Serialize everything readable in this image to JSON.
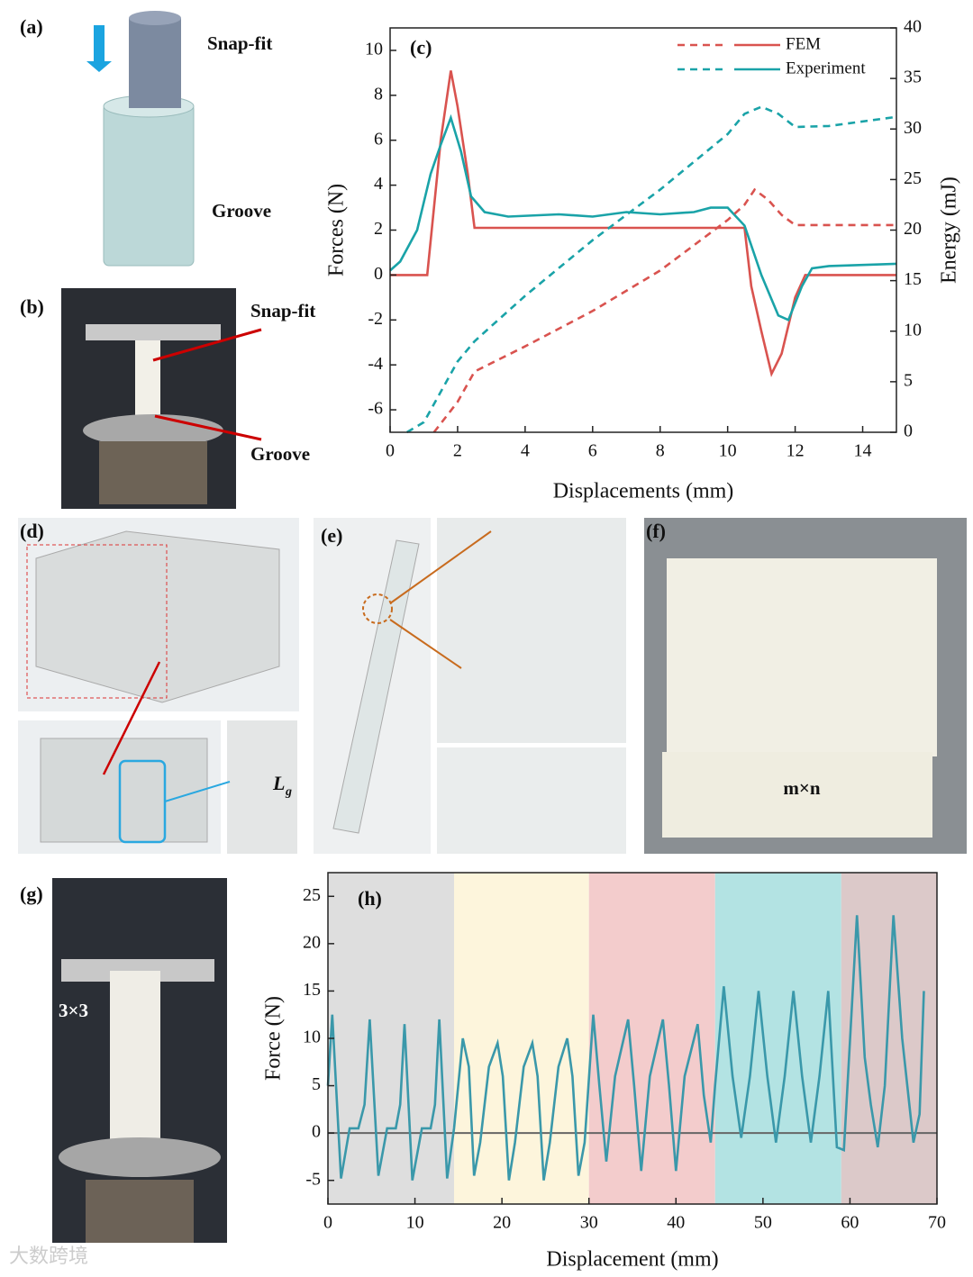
{
  "panels": {
    "a": {
      "label": "(a)",
      "top_text": "Snap-fit",
      "bottom_text": "Groove"
    },
    "b": {
      "label": "(b)",
      "top_text": "Snap-fit",
      "bottom_text": "Groove"
    },
    "d": {
      "label": "(d)",
      "dim_main": "L",
      "dim_sub": "g"
    },
    "e": {
      "label": "(e)"
    },
    "f": {
      "label": "(f)",
      "caption": "m×n"
    },
    "g": {
      "label": "(g)",
      "caption": "3×3"
    },
    "watermark": "大数跨境"
  },
  "chart_data": [
    {
      "type": "line",
      "title": "(c)",
      "x_label": "Displacements (mm)",
      "y_label": "Forces (N)",
      "y2_label": "Energy (mJ)",
      "xlim": [
        0,
        15
      ],
      "xticks": [
        0,
        2,
        4,
        6,
        8,
        10,
        12,
        14
      ],
      "ylim": [
        -7,
        11
      ],
      "yticks": [
        -6,
        -4,
        -2,
        0,
        2,
        4,
        6,
        8,
        10
      ],
      "y2lim": [
        0,
        40
      ],
      "y2ticks": [
        0,
        5,
        10,
        15,
        20,
        25,
        30,
        35,
        40
      ],
      "series": [
        {
          "name": "FEM",
          "color": "#d9534f",
          "dash": false,
          "x": [
            0,
            1.1,
            1.5,
            1.8,
            2.0,
            2.3,
            2.5,
            10.5,
            10.7,
            11.0,
            11.3,
            11.6,
            12.0,
            12.3,
            15
          ],
          "values": [
            0,
            0,
            6,
            9.1,
            7.5,
            4.5,
            2.1,
            2.1,
            -0.5,
            -2.5,
            -4.4,
            -3.5,
            -1,
            0,
            0
          ]
        },
        {
          "name": "Experiment",
          "color": "#1aa3a8",
          "dash": false,
          "x": [
            0,
            0.3,
            0.8,
            1.2,
            1.5,
            1.8,
            2.1,
            2.4,
            2.8,
            3.5,
            5,
            6,
            7,
            8,
            9,
            9.5,
            10,
            10.5,
            11,
            11.5,
            11.8,
            12.2,
            12.5,
            13,
            15
          ],
          "values": [
            0.2,
            0.6,
            2,
            4.5,
            5.8,
            7,
            5.5,
            3.5,
            2.8,
            2.6,
            2.7,
            2.6,
            2.8,
            2.7,
            2.8,
            3,
            3,
            2.2,
            0,
            -1.8,
            -2,
            -0.5,
            0.3,
            0.4,
            0.5
          ]
        },
        {
          "color": "#d9534f",
          "dash": true,
          "axis": "y2",
          "x": [
            1.3,
            2,
            2.5,
            4,
            6,
            8,
            10,
            10.5,
            10.8,
            11.2,
            11.6,
            12,
            13,
            15
          ],
          "values": [
            0,
            3,
            6,
            8.5,
            12,
            16,
            21,
            22.5,
            24,
            23,
            21.5,
            20.5,
            20.5,
            20.5
          ]
        },
        {
          "color": "#1aa3a8",
          "dash": true,
          "axis": "y2",
          "x": [
            0.5,
            1,
            1.5,
            2,
            2.5,
            3,
            4,
            6,
            8,
            10,
            10.5,
            11,
            11.5,
            12,
            13,
            15
          ],
          "values": [
            0,
            1,
            4,
            7,
            9,
            10.5,
            13.5,
            19,
            24,
            29.5,
            31.5,
            32.2,
            31.5,
            30.2,
            30.3,
            31.2
          ]
        }
      ]
    },
    {
      "type": "line",
      "title": "(h)",
      "x_label": "Displacement (mm)",
      "y_label": "Force (N)",
      "xlim": [
        0,
        70
      ],
      "xticks": [
        0,
        10,
        20,
        30,
        40,
        50,
        60,
        70
      ],
      "ylim": [
        -7.5,
        27.5
      ],
      "yticks": [
        -5,
        0,
        5,
        10,
        15,
        20,
        25
      ],
      "hline": 0,
      "regions": [
        {
          "x": [
            0,
            14.5
          ],
          "color": "#dedede"
        },
        {
          "x": [
            14.5,
            30
          ],
          "color": "#fdf5dc"
        },
        {
          "x": [
            30,
            44.5
          ],
          "color": "#f3cccc"
        },
        {
          "x": [
            44.5,
            59
          ],
          "color": "#b3e3e3"
        },
        {
          "x": [
            59,
            70
          ],
          "color": "#dcc9c9"
        }
      ],
      "series": [
        {
          "color": "#3a98aa",
          "dash": false,
          "x": [
            0,
            0.5,
            1.5,
            2.5,
            3.5,
            4.2,
            4.8,
            5.8,
            6.8,
            7.8,
            8.3,
            8.8,
            9.7,
            10.8,
            11.8,
            12.3,
            12.8,
            13.7,
            14.5,
            15.5,
            16.2,
            16.8,
            17.5,
            18.5,
            19.5,
            20.1,
            20.8,
            21.5,
            22.5,
            23.5,
            24.1,
            24.8,
            25.5,
            26.5,
            27.5,
            28.1,
            28.8,
            29.5,
            30.5,
            31.2,
            32,
            33,
            34.5,
            35.2,
            36,
            37,
            38.5,
            39.2,
            40,
            41,
            42.5,
            43.2,
            44,
            44.5,
            45.5,
            46.5,
            47.5,
            48.5,
            49.5,
            50.5,
            51.5,
            52.5,
            53.5,
            54.5,
            55.5,
            56.5,
            57.5,
            58.5,
            59.3,
            60.8,
            61.7,
            62.4,
            63.2,
            64,
            65,
            66,
            67.3,
            68,
            68.5
          ],
          "values": [
            5,
            12.5,
            -4.8,
            0.5,
            0.5,
            3,
            12,
            -4.5,
            0.5,
            0.5,
            3,
            11.5,
            -5,
            0.5,
            0.5,
            3,
            12,
            -4.8,
            0.5,
            10,
            7,
            -4.5,
            -1,
            7,
            9.5,
            6,
            -5,
            -1,
            7,
            9.5,
            6,
            -5,
            -1,
            7,
            10,
            6,
            -4.5,
            -1,
            12.5,
            5,
            -3,
            6,
            12,
            5,
            -4,
            6,
            12,
            5,
            -4,
            6,
            11.5,
            4,
            -1,
            5,
            15.5,
            6,
            -0.5,
            6,
            15,
            6,
            -1,
            6,
            15,
            6,
            -1,
            6,
            15,
            -1.5,
            -1.8,
            23,
            8,
            3,
            -1.5,
            5,
            23,
            10,
            -1,
            2,
            15
          ]
        }
      ]
    }
  ]
}
